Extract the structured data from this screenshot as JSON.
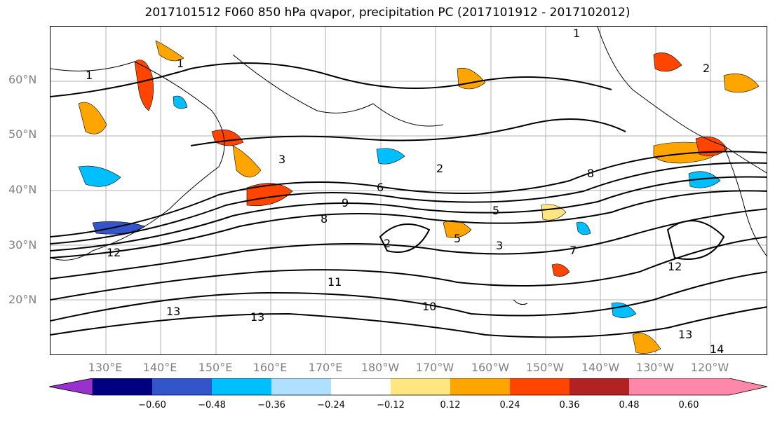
{
  "title": "2017101512 F060 850 hPa qvapor, precipitation PC (2017101912 - 2017102012)",
  "lat_labels": [
    "60°N",
    "50°N",
    "40°N",
    "30°N",
    "20°N"
  ],
  "lon_labels": [
    "130°E",
    "140°E",
    "150°E",
    "160°E",
    "170°E",
    "180°W",
    "170°W",
    "160°W",
    "150°W",
    "140°W",
    "130°W",
    "120°W"
  ],
  "contour_labels": [
    "1",
    "1",
    "1",
    "2",
    "2",
    "2",
    "3",
    "3",
    "5",
    "5",
    "6",
    "7",
    "8",
    "8",
    "9",
    "10",
    "11",
    "12",
    "12",
    "13",
    "13",
    "13",
    "14"
  ],
  "colorbar": {
    "ticks": [
      "−0.60",
      "−0.48",
      "−0.36",
      "−0.24",
      "−0.12",
      "0.12",
      "0.24",
      "0.36",
      "0.48",
      "0.60"
    ],
    "colors": [
      "#9932cc",
      "#000080",
      "#3355cc",
      "#00bfff",
      "#b0e0ff",
      "#ffffff",
      "#ffe680",
      "#ffa500",
      "#ff4500",
      "#b22222",
      "#ff88aa"
    ]
  }
}
